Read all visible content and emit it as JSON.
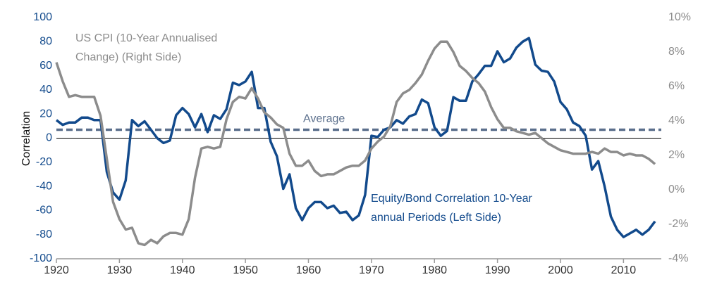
{
  "chart_data": {
    "type": "line",
    "y_label": "Correlation",
    "x": [
      1920,
      1921,
      1922,
      1923,
      1924,
      1925,
      1926,
      1927,
      1928,
      1929,
      1930,
      1931,
      1932,
      1933,
      1934,
      1935,
      1936,
      1937,
      1938,
      1939,
      1940,
      1941,
      1942,
      1943,
      1944,
      1945,
      1946,
      1947,
      1948,
      1949,
      1950,
      1951,
      1952,
      1953,
      1954,
      1955,
      1956,
      1957,
      1958,
      1959,
      1960,
      1961,
      1962,
      1963,
      1964,
      1965,
      1966,
      1967,
      1968,
      1969,
      1970,
      1971,
      1972,
      1973,
      1974,
      1975,
      1976,
      1977,
      1978,
      1979,
      1980,
      1981,
      1982,
      1983,
      1984,
      1985,
      1986,
      1987,
      1988,
      1989,
      1990,
      1991,
      1992,
      1993,
      1994,
      1995,
      1996,
      1997,
      1998,
      1999,
      2000,
      2001,
      2002,
      2003,
      2004,
      2005,
      2006,
      2007,
      2008,
      2009,
      2010,
      2011,
      2012,
      2013,
      2014,
      2015
    ],
    "xlim": [
      1920,
      2016
    ],
    "xticks": [
      1920,
      1930,
      1940,
      1950,
      1960,
      1970,
      1980,
      1990,
      2000,
      2010
    ],
    "ylim": [
      -100,
      100
    ],
    "yticks": [
      -100,
      -80,
      -60,
      -40,
      -20,
      0,
      20,
      40,
      60,
      80,
      100
    ],
    "y2lim": [
      -4,
      10
    ],
    "y2ticks": [
      {
        "value": -4,
        "label": "-4%"
      },
      {
        "value": -2,
        "label": "-2%"
      },
      {
        "value": 0,
        "label": "0%"
      },
      {
        "value": 2,
        "label": "2%"
      },
      {
        "value": 4,
        "label": "4%"
      },
      {
        "value": 6,
        "label": "6%"
      },
      {
        "value": 8,
        "label": "8%"
      },
      {
        "value": 10,
        "label": "10%"
      }
    ],
    "average": {
      "label": "Average",
      "value": 7,
      "color": "#5b6f8c"
    },
    "series": [
      {
        "name": [
          "Equity/Bond Correlation 10-Year",
          "annual Periods (Left Side)"
        ],
        "color": "#124a8c",
        "values": [
          15,
          11,
          13,
          13,
          17,
          17,
          15,
          15,
          -28,
          -45,
          -51,
          -35,
          15,
          10,
          14,
          7,
          0,
          -4,
          -2,
          19,
          25,
          20,
          9,
          20,
          5,
          19,
          16,
          24,
          46,
          44,
          47,
          55,
          25,
          25,
          -3,
          -15,
          -42,
          -30,
          -58,
          -68,
          -58,
          -53,
          -53,
          -58,
          -56,
          -62,
          -61,
          -68,
          -64,
          -47,
          2,
          1,
          7,
          9,
          15,
          12,
          18,
          20,
          32,
          29,
          9,
          2,
          6,
          34,
          31,
          31,
          47,
          53,
          60,
          60,
          72,
          63,
          66,
          75,
          80,
          83,
          61,
          56,
          55,
          47,
          30,
          24,
          13,
          10,
          2,
          -26,
          -19,
          -40,
          -65,
          -76,
          -82,
          -79,
          -76,
          -80,
          -76,
          -69
        ]
      },
      {
        "name": [
          "US CPI (10-Year Annualised",
          "Change) (Right Side)"
        ],
        "color": "#8c8c8c",
        "axis": "y2",
        "values": [
          7.4,
          6.3,
          5.4,
          5.5,
          5.4,
          5.4,
          5.4,
          4.3,
          1.8,
          -0.7,
          -1.7,
          -2.3,
          -2.2,
          -3.1,
          -3.2,
          -2.9,
          -3.1,
          -2.7,
          -2.5,
          -2.5,
          -2.6,
          -1.7,
          0.7,
          2.4,
          2.5,
          2.4,
          2.5,
          4.1,
          5.1,
          5.4,
          5.3,
          5.9,
          5.3,
          4.5,
          4.2,
          3.8,
          3.6,
          2.1,
          1.4,
          1.4,
          1.7,
          1.1,
          0.8,
          0.9,
          0.9,
          1.1,
          1.3,
          1.4,
          1.4,
          1.7,
          2.4,
          2.8,
          3.1,
          3.7,
          5.1,
          5.6,
          5.8,
          6.2,
          6.7,
          7.5,
          8.2,
          8.6,
          8.6,
          8.0,
          7.2,
          6.9,
          6.5,
          6.2,
          5.7,
          4.8,
          4.1,
          3.6,
          3.6,
          3.4,
          3.3,
          3.2,
          3.3,
          3.0,
          2.7,
          2.5,
          2.3,
          2.2,
          2.1,
          2.1,
          2.1,
          2.2,
          2.1,
          2.4,
          2.2,
          2.2,
          2.0,
          2.1,
          2.0,
          2.0,
          1.8,
          1.5
        ]
      }
    ]
  }
}
